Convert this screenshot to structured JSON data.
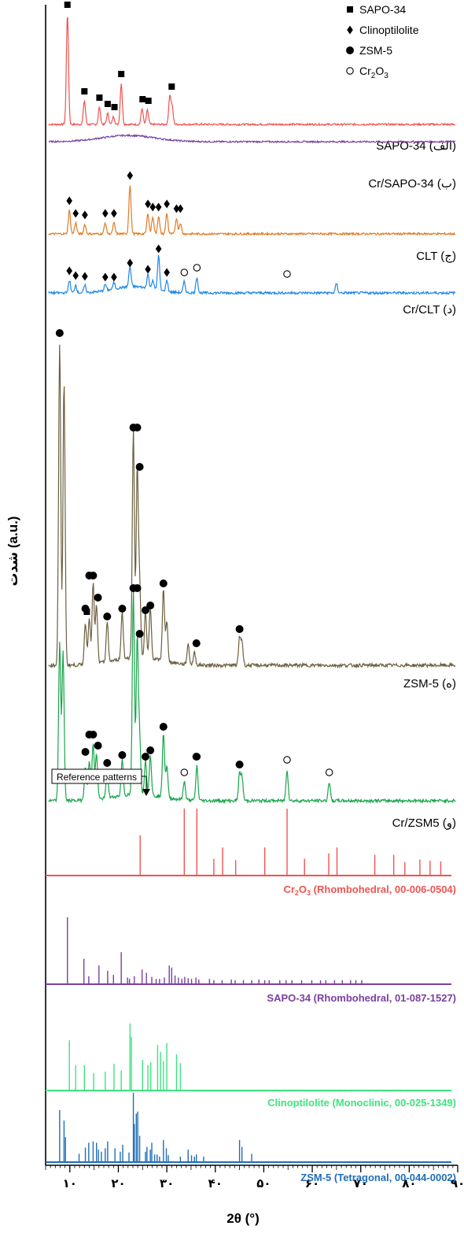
{
  "chart_data": {
    "type": "line",
    "xlabel": "2θ (°)",
    "ylabel": "شدت (a.u.)",
    "xlim": [
      5,
      90
    ],
    "x_ticks": [
      10,
      20,
      30,
      40,
      50,
      60,
      70,
      80,
      90
    ],
    "x_tick_labels": [
      "۱۰",
      "۲۰",
      "۳۰",
      "۴۰",
      "۵۰",
      "۶۰",
      "۷۰",
      "۸۰",
      "۹۰"
    ],
    "legend": [
      {
        "marker": "square",
        "label": "SAPO-34"
      },
      {
        "marker": "diamond",
        "label": "Clinoptilolite"
      },
      {
        "marker": "circle",
        "label": "ZSM-5"
      },
      {
        "marker": "open-circle",
        "label": "Cr2O3"
      }
    ],
    "series": [
      {
        "label": "SAPO-34 (الف)",
        "color": "#ef5350",
        "peaks": [
          [
            9.5,
            140
          ],
          [
            13.0,
            30
          ],
          [
            16.1,
            22
          ],
          [
            17.8,
            14
          ],
          [
            19.0,
            10
          ],
          [
            20.6,
            52
          ],
          [
            24.9,
            20
          ],
          [
            26.0,
            18
          ],
          [
            30.6,
            36
          ],
          [
            31.1,
            22
          ]
        ],
        "markers": [
          [
            9.5,
            "square"
          ],
          [
            13.0,
            "square"
          ],
          [
            16.1,
            "square"
          ],
          [
            17.8,
            "square"
          ],
          [
            19.2,
            "square"
          ],
          [
            20.6,
            "square"
          ],
          [
            25.0,
            "square"
          ],
          [
            26.2,
            "square"
          ],
          [
            31.0,
            "square"
          ]
        ]
      },
      {
        "label": "Cr/SAPO-34 (ب)",
        "color": "#7b3fa0",
        "peaks": [],
        "markers": []
      },
      {
        "label": "CLT (ج)",
        "color": "#e07b24",
        "peaks": [
          [
            9.9,
            30
          ],
          [
            11.2,
            14
          ],
          [
            13.1,
            12
          ],
          [
            17.3,
            14
          ],
          [
            19.1,
            14
          ],
          [
            22.4,
            62
          ],
          [
            26.1,
            26
          ],
          [
            27.1,
            22
          ],
          [
            28.3,
            22
          ],
          [
            30.0,
            26
          ],
          [
            32.0,
            20
          ],
          [
            32.8,
            14
          ]
        ],
        "markers": [
          [
            9.9,
            "diamond"
          ],
          [
            11.2,
            "diamond"
          ],
          [
            13.1,
            "diamond"
          ],
          [
            17.3,
            "diamond"
          ],
          [
            19.1,
            "diamond"
          ],
          [
            22.4,
            "diamond"
          ],
          [
            26.1,
            "diamond"
          ],
          [
            27.1,
            "diamond"
          ],
          [
            28.3,
            "diamond"
          ],
          [
            30.0,
            "diamond"
          ],
          [
            32.0,
            "diamond"
          ],
          [
            32.8,
            "diamond"
          ]
        ]
      },
      {
        "label": "Cr/CLT (د)",
        "color": "#1e88e5",
        "peaks": [
          [
            9.9,
            16
          ],
          [
            11.2,
            10
          ],
          [
            13.1,
            9
          ],
          [
            17.3,
            8
          ],
          [
            19.1,
            8
          ],
          [
            22.4,
            26
          ],
          [
            26.1,
            18
          ],
          [
            27.1,
            12
          ],
          [
            28.3,
            44
          ],
          [
            30.0,
            14
          ],
          [
            33.6,
            14
          ],
          [
            36.2,
            20
          ],
          [
            65.0,
            12
          ]
        ],
        "markers": [
          [
            9.9,
            "diamond"
          ],
          [
            11.2,
            "diamond"
          ],
          [
            13.1,
            "diamond"
          ],
          [
            17.3,
            "diamond"
          ],
          [
            19.1,
            "diamond"
          ],
          [
            22.4,
            "diamond"
          ],
          [
            26.1,
            "diamond"
          ],
          [
            28.3,
            "diamond"
          ],
          [
            30.0,
            "diamond"
          ],
          [
            33.6,
            "open-circle"
          ],
          [
            36.2,
            "open-circle"
          ],
          [
            54.8,
            "open-circle"
          ]
        ]
      },
      {
        "label": "ZSM-5 (ه)",
        "color": "#6b6040",
        "peaks": [
          [
            7.9,
            410
          ],
          [
            8.8,
            360
          ],
          [
            13.2,
            54
          ],
          [
            14.0,
            60
          ],
          [
            14.8,
            102
          ],
          [
            15.5,
            74
          ],
          [
            17.7,
            50
          ],
          [
            20.8,
            60
          ],
          [
            23.1,
            290
          ],
          [
            23.9,
            240
          ],
          [
            24.4,
            90
          ],
          [
            25.6,
            58
          ],
          [
            26.6,
            64
          ],
          [
            29.3,
            92
          ],
          [
            30.0,
            50
          ],
          [
            34.4,
            26
          ],
          [
            35.7,
            16
          ],
          [
            45.0,
            34
          ],
          [
            45.5,
            30
          ]
        ],
        "markers": [
          [
            7.9,
            "circle"
          ],
          [
            13.2,
            "circle"
          ],
          [
            14.0,
            "circle"
          ],
          [
            14.8,
            "circle"
          ],
          [
            15.8,
            "circle"
          ],
          [
            17.7,
            "circle"
          ],
          [
            20.8,
            "circle"
          ],
          [
            23.1,
            "circle"
          ],
          [
            23.9,
            "circle"
          ],
          [
            24.4,
            "circle"
          ],
          [
            25.6,
            "circle"
          ],
          [
            26.6,
            "circle"
          ],
          [
            29.3,
            "circle"
          ],
          [
            36.1,
            "circle"
          ],
          [
            45.0,
            "circle"
          ]
        ]
      },
      {
        "label": "Cr/ZSM5 (و)",
        "color": "#1aa54b",
        "peaks": [
          [
            7.9,
            200
          ],
          [
            8.6,
            190
          ],
          [
            13.2,
            44
          ],
          [
            14.0,
            50
          ],
          [
            14.8,
            72
          ],
          [
            15.5,
            58
          ],
          [
            17.7,
            36
          ],
          [
            20.8,
            46
          ],
          [
            23.1,
            258
          ],
          [
            23.9,
            200
          ],
          [
            24.4,
            70
          ],
          [
            25.6,
            44
          ],
          [
            26.6,
            52
          ],
          [
            29.3,
            82
          ],
          [
            30.0,
            40
          ],
          [
            33.6,
            24
          ],
          [
            36.2,
            44
          ],
          [
            45.0,
            34
          ],
          [
            45.5,
            30
          ],
          [
            54.8,
            40
          ],
          [
            63.5,
            24
          ]
        ],
        "markers": [
          [
            13.2,
            "circle"
          ],
          [
            14.0,
            "circle"
          ],
          [
            14.8,
            "circle"
          ],
          [
            15.8,
            "circle"
          ],
          [
            17.7,
            "circle"
          ],
          [
            20.8,
            "circle"
          ],
          [
            23.1,
            "circle"
          ],
          [
            23.9,
            "circle"
          ],
          [
            24.4,
            "circle"
          ],
          [
            25.6,
            "circle"
          ],
          [
            26.6,
            "circle"
          ],
          [
            29.3,
            "circle"
          ],
          [
            33.6,
            "open-circle"
          ],
          [
            36.2,
            "open-circle"
          ],
          [
            36.1,
            "circle"
          ],
          [
            45.0,
            "circle"
          ],
          [
            54.8,
            "open-circle"
          ],
          [
            63.5,
            "open-circle"
          ],
          [
            13.5,
            "square"
          ]
        ]
      }
    ],
    "reference_title": "Reference patterns",
    "references": [
      {
        "label_pre": "Cr",
        "label_sub1": "2",
        "label_mid": "O",
        "label_sub2": "3",
        "label_post": " (Rhombohedral, 00-006-0504)",
        "color": "#ef5350",
        "lines": [
          [
            24.5,
            60
          ],
          [
            33.6,
            100
          ],
          [
            36.2,
            100
          ],
          [
            39.7,
            25
          ],
          [
            41.5,
            42
          ],
          [
            44.2,
            23
          ],
          [
            50.2,
            42
          ],
          [
            54.8,
            100
          ],
          [
            58.4,
            25
          ],
          [
            63.4,
            33
          ],
          [
            65.1,
            42
          ],
          [
            72.9,
            31
          ],
          [
            76.8,
            31
          ],
          [
            79.1,
            20
          ],
          [
            82.2,
            24
          ],
          [
            84.3,
            22
          ],
          [
            86.5,
            21
          ]
        ]
      },
      {
        "label_pre": "SAPO-34 (Rhombohedral, 01-087-1527)",
        "label_sub1": "",
        "label_mid": "",
        "label_sub2": "",
        "label_post": "",
        "color": "#7b3fa0",
        "lines": [
          [
            9.5,
            100
          ],
          [
            12.9,
            38
          ],
          [
            13.9,
            12
          ],
          [
            16.0,
            28
          ],
          [
            17.8,
            20
          ],
          [
            19.0,
            14
          ],
          [
            20.6,
            48
          ],
          [
            21.9,
            10
          ],
          [
            22.3,
            8
          ],
          [
            23.3,
            12
          ],
          [
            24.9,
            22
          ],
          [
            25.8,
            17
          ],
          [
            26.9,
            11
          ],
          [
            27.8,
            8
          ],
          [
            28.5,
            8
          ],
          [
            29.5,
            10
          ],
          [
            30.5,
            28
          ],
          [
            31.0,
            25
          ],
          [
            31.7,
            13
          ],
          [
            32.4,
            10
          ],
          [
            33.1,
            8
          ],
          [
            33.7,
            11
          ],
          [
            34.4,
            9
          ],
          [
            35.1,
            8
          ],
          [
            36.0,
            10
          ],
          [
            36.6,
            7
          ],
          [
            38.8,
            8
          ],
          [
            39.7,
            6
          ],
          [
            41.4,
            6
          ],
          [
            43.3,
            7
          ],
          [
            44.1,
            6
          ],
          [
            45.8,
            6
          ],
          [
            47.5,
            6
          ],
          [
            49.0,
            7
          ],
          [
            50.2,
            6
          ],
          [
            51.1,
            6
          ],
          [
            53.3,
            6
          ],
          [
            54.6,
            6
          ],
          [
            55.8,
            6
          ],
          [
            57.8,
            6
          ],
          [
            59.9,
            6
          ],
          [
            61.7,
            6
          ],
          [
            62.8,
            6
          ],
          [
            64.6,
            6
          ],
          [
            66.2,
            6
          ],
          [
            67.9,
            6
          ],
          [
            69.0,
            6
          ],
          [
            70.2,
            6
          ]
        ]
      },
      {
        "label_pre": "Clinoptilolite (Monoclinic, 00-025-1349)",
        "label_sub1": "",
        "label_mid": "",
        "label_sub2": "",
        "label_post": "",
        "color": "#3ee37f",
        "lines": [
          [
            9.9,
            75
          ],
          [
            11.2,
            38
          ],
          [
            13.0,
            38
          ],
          [
            14.9,
            26
          ],
          [
            17.3,
            28
          ],
          [
            19.1,
            40
          ],
          [
            20.6,
            30
          ],
          [
            22.4,
            100
          ],
          [
            22.7,
            80
          ],
          [
            25.0,
            46
          ],
          [
            26.1,
            38
          ],
          [
            26.7,
            42
          ],
          [
            28.1,
            68
          ],
          [
            28.7,
            58
          ],
          [
            29.3,
            44
          ],
          [
            30.0,
            71
          ],
          [
            32.0,
            54
          ],
          [
            32.8,
            41
          ]
        ]
      },
      {
        "label_pre": "ZSM-5 (Tetragonal, 00-044-0002)",
        "label_sub1": "",
        "label_mid": "",
        "label_sub2": "",
        "label_post": "",
        "color": "#1f6eb5",
        "lines": [
          [
            7.9,
            75
          ],
          [
            8.8,
            60
          ],
          [
            9.1,
            36
          ],
          [
            11.9,
            12
          ],
          [
            13.2,
            21
          ],
          [
            13.9,
            28
          ],
          [
            14.8,
            30
          ],
          [
            15.5,
            28
          ],
          [
            15.9,
            18
          ],
          [
            16.5,
            15
          ],
          [
            17.3,
            20
          ],
          [
            17.8,
            30
          ],
          [
            19.3,
            20
          ],
          [
            20.4,
            15
          ],
          [
            20.9,
            25
          ],
          [
            22.2,
            14
          ],
          [
            23.1,
            100
          ],
          [
            23.3,
            55
          ],
          [
            23.7,
            70
          ],
          [
            24.0,
            73
          ],
          [
            24.4,
            38
          ],
          [
            25.6,
            15
          ],
          [
            25.9,
            22
          ],
          [
            26.6,
            18
          ],
          [
            26.9,
            28
          ],
          [
            27.5,
            11
          ],
          [
            28.0,
            11
          ],
          [
            28.5,
            8
          ],
          [
            29.3,
            32
          ],
          [
            29.9,
            20
          ],
          [
            30.3,
            10
          ],
          [
            32.8,
            8
          ],
          [
            34.4,
            18
          ],
          [
            35.1,
            10
          ],
          [
            35.7,
            8
          ],
          [
            36.1,
            11
          ],
          [
            37.6,
            8
          ],
          [
            45.0,
            32
          ],
          [
            45.5,
            22
          ],
          [
            47.5,
            12
          ]
        ]
      }
    ]
  }
}
